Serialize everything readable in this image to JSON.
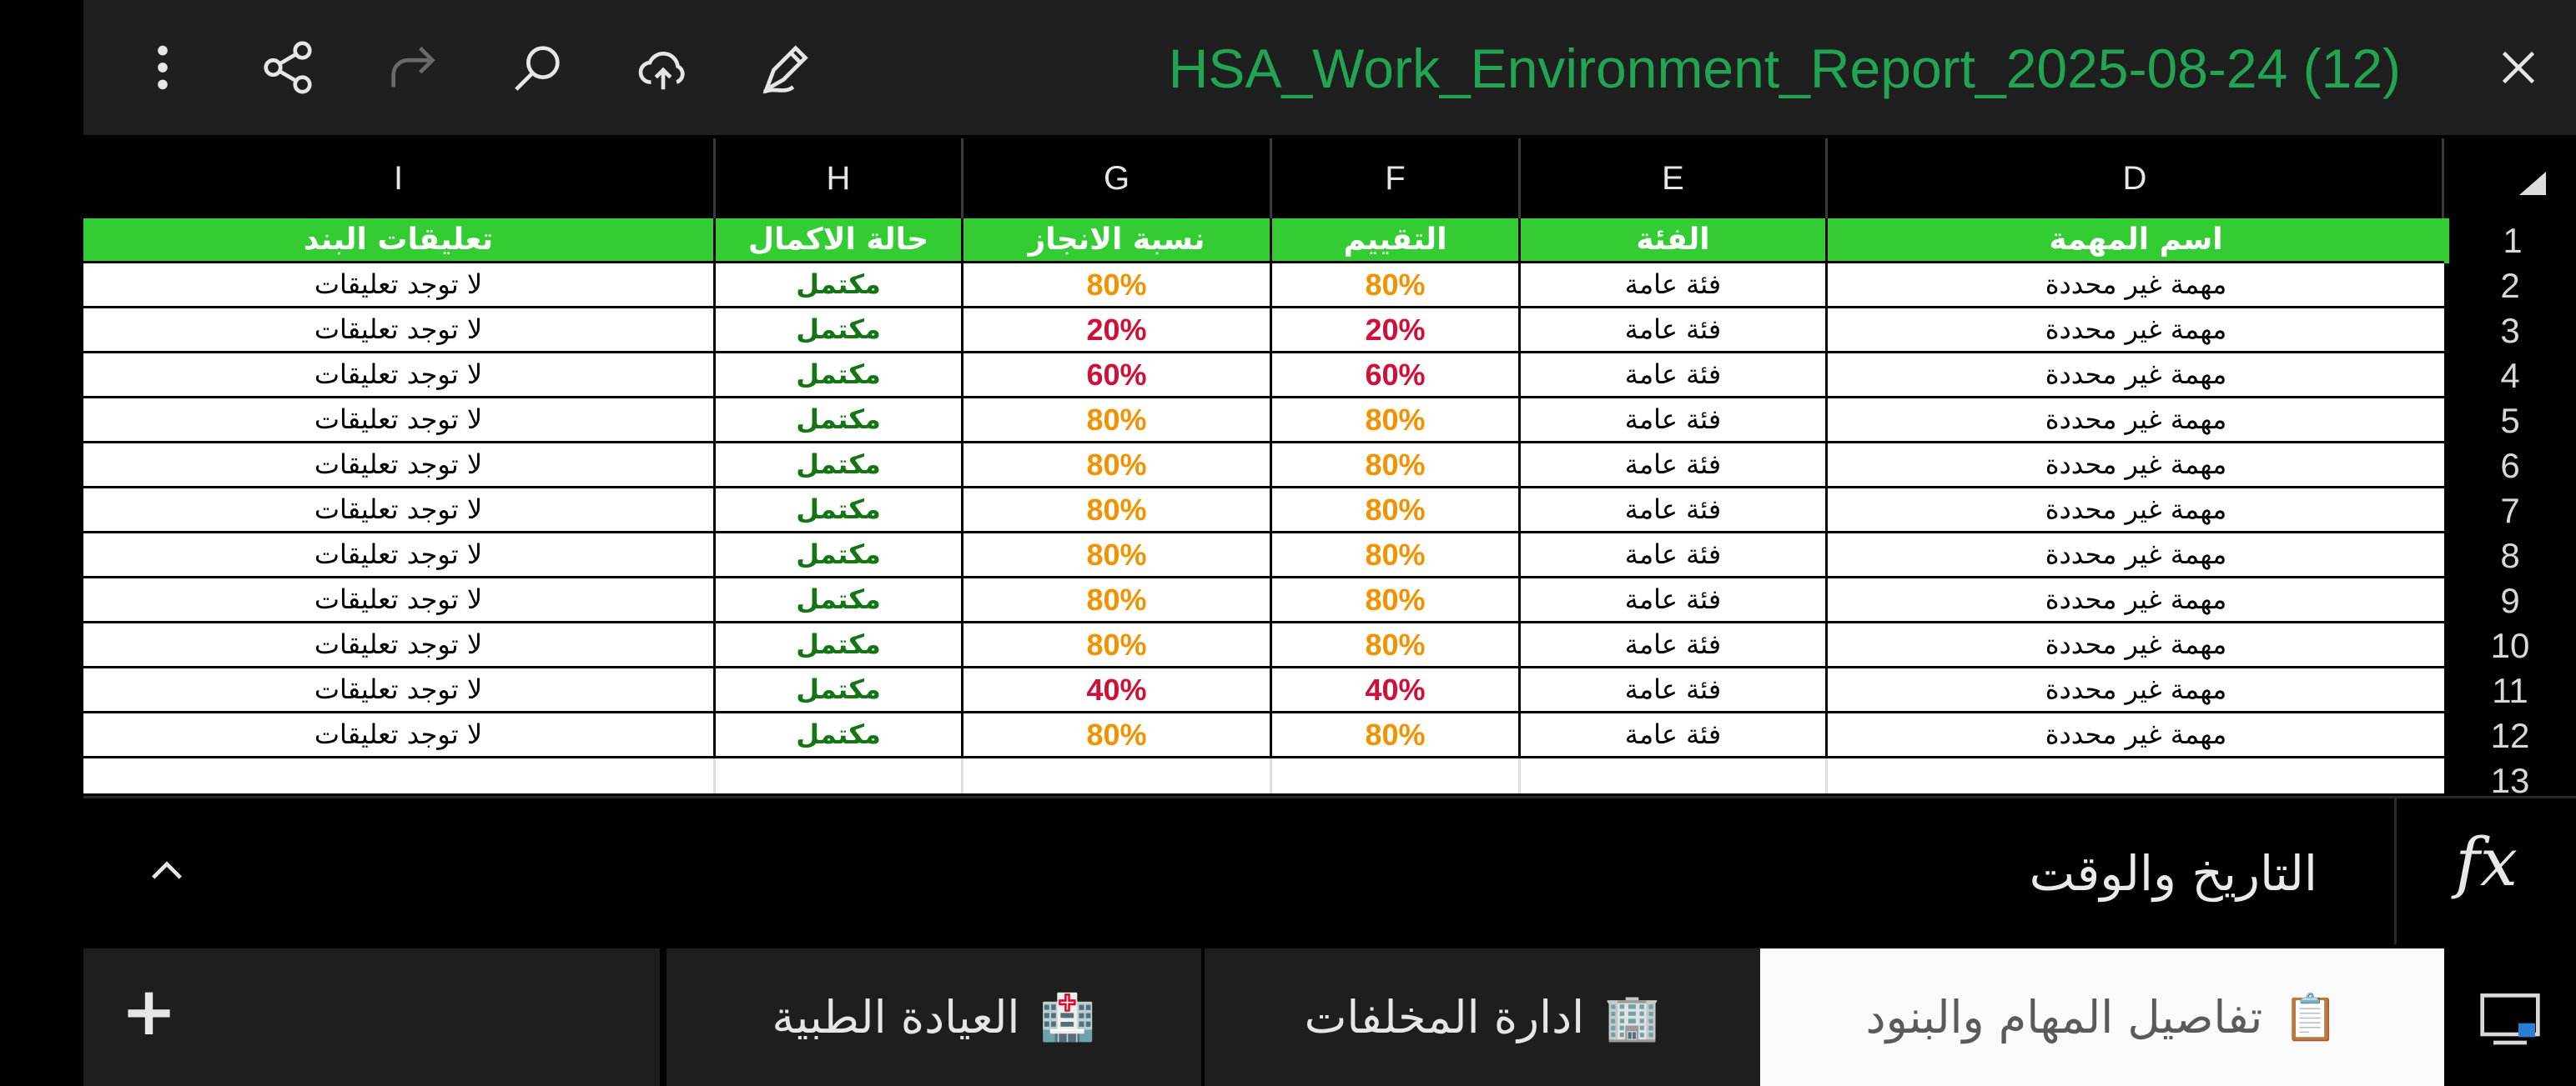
{
  "window": {
    "title": "HSA_Work_Environment_Report_2025-08-24 (12)"
  },
  "toolbar": {
    "icons": [
      "more-vertical-icon",
      "share-icon",
      "redo-icon",
      "search-icon",
      "cloud-upload-icon",
      "handwriting-pen-icon",
      "close-icon"
    ]
  },
  "columns": {
    "I": "I",
    "H": "H",
    "G": "G",
    "F": "F",
    "E": "E",
    "D": "D"
  },
  "table": {
    "headers": {
      "comments": "تعليقات البند",
      "status": "حالة الاكمال",
      "completion": "نسبة الانجاز",
      "rating": "التقييم",
      "category": "الفئة",
      "task": "اسم المهمة"
    },
    "rows": [
      {
        "comments": "لا توجد تعليقات",
        "status": "مكتمل",
        "completion": "80%",
        "rating": "80%",
        "category": "فئة عامة",
        "task": "مهمة غير محددة"
      },
      {
        "comments": "لا توجد تعليقات",
        "status": "مكتمل",
        "completion": "20%",
        "rating": "20%",
        "category": "فئة عامة",
        "task": "مهمة غير محددة"
      },
      {
        "comments": "لا توجد تعليقات",
        "status": "مكتمل",
        "completion": "60%",
        "rating": "60%",
        "category": "فئة عامة",
        "task": "مهمة غير محددة"
      },
      {
        "comments": "لا توجد تعليقات",
        "status": "مكتمل",
        "completion": "80%",
        "rating": "80%",
        "category": "فئة عامة",
        "task": "مهمة غير محددة"
      },
      {
        "comments": "لا توجد تعليقات",
        "status": "مكتمل",
        "completion": "80%",
        "rating": "80%",
        "category": "فئة عامة",
        "task": "مهمة غير محددة"
      },
      {
        "comments": "لا توجد تعليقات",
        "status": "مكتمل",
        "completion": "80%",
        "rating": "80%",
        "category": "فئة عامة",
        "task": "مهمة غير محددة"
      },
      {
        "comments": "لا توجد تعليقات",
        "status": "مكتمل",
        "completion": "80%",
        "rating": "80%",
        "category": "فئة عامة",
        "task": "مهمة غير محددة"
      },
      {
        "comments": "لا توجد تعليقات",
        "status": "مكتمل",
        "completion": "80%",
        "rating": "80%",
        "category": "فئة عامة",
        "task": "مهمة غير محددة"
      },
      {
        "comments": "لا توجد تعليقات",
        "status": "مكتمل",
        "completion": "80%",
        "rating": "80%",
        "category": "فئة عامة",
        "task": "مهمة غير محددة"
      },
      {
        "comments": "لا توجد تعليقات",
        "status": "مكتمل",
        "completion": "40%",
        "rating": "40%",
        "category": "فئة عامة",
        "task": "مهمة غير محددة"
      },
      {
        "comments": "لا توجد تعليقات",
        "status": "مكتمل",
        "completion": "80%",
        "rating": "80%",
        "category": "فئة عامة",
        "task": "مهمة غير محددة"
      }
    ]
  },
  "row_numbers": [
    "1",
    "2",
    "3",
    "4",
    "5",
    "6",
    "7",
    "8",
    "9",
    "10",
    "11",
    "12",
    "13"
  ],
  "formula_bar": {
    "label": "fx",
    "value": "التاريخ والوقت"
  },
  "sheet_tabs": [
    {
      "emoji": "📋",
      "label": "تفاصيل المهام والبنود",
      "active": true
    },
    {
      "emoji": "🏢",
      "label": "ادارة المخلفات",
      "active": false
    },
    {
      "emoji": "🏥",
      "label": "العيادة الطبية",
      "active": false
    }
  ],
  "add_sheet_label": "+",
  "colors": {
    "header_green": "#33cc33",
    "title_green": "#22a553",
    "status_green": "#157515",
    "pct_high": "#f39200",
    "pct_low": "#d0103a"
  }
}
